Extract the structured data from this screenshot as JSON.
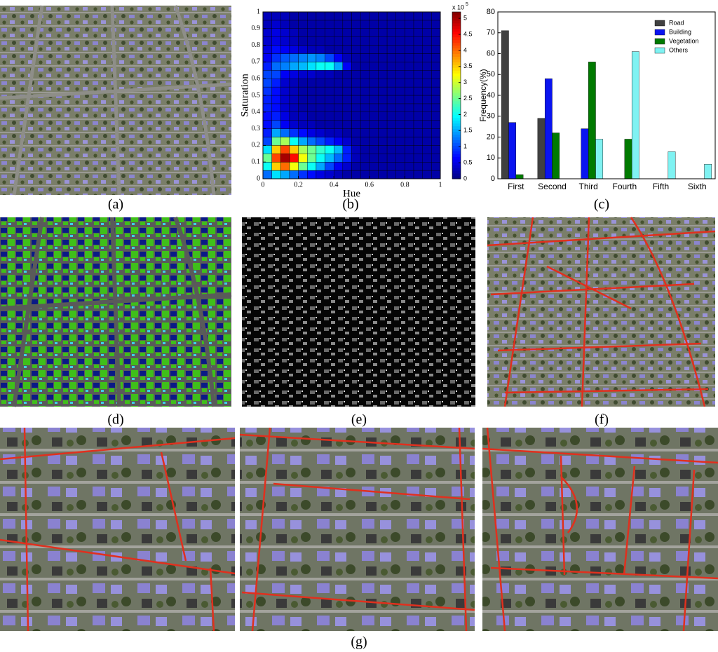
{
  "panels": {
    "captions": [
      "(a)",
      "(b)",
      "(c)",
      "(d)",
      "(e)",
      "(f)",
      "(g)"
    ]
  },
  "chart_data": [
    {
      "type": "heatmap",
      "xlabel": "Hue",
      "ylabel": "Saturation",
      "xlim": [
        0,
        1
      ],
      "ylim": [
        0,
        1
      ],
      "xticks": [
        0,
        0.2,
        0.4,
        0.6,
        0.8,
        1
      ],
      "yticks": [
        0,
        0.1,
        0.2,
        0.3,
        0.4,
        0.5,
        0.6,
        0.7,
        0.8,
        0.9,
        1
      ],
      "clim": [
        0,
        5.2
      ],
      "cticks": [
        0,
        0.5,
        1,
        1.5,
        2,
        2.5,
        3,
        3.5,
        4,
        4.5,
        5
      ],
      "colorbar_scale": {
        "base": "x 10",
        "exponent": "5"
      },
      "values": [
        [
          1.2,
          1.8,
          1.5,
          1.2,
          0.9,
          0.7,
          0.5,
          0.4,
          0.3,
          0.2,
          0.2,
          0.2,
          0.2,
          0.2,
          0.2,
          0.2,
          0.2,
          0.2,
          0.2,
          0.2
        ],
        [
          2.0,
          3.5,
          4.0,
          3.2,
          2.5,
          2.0,
          1.5,
          1.0,
          0.6,
          0.4,
          0.2,
          0.2,
          0.2,
          0.2,
          0.2,
          0.2,
          0.2,
          0.2,
          0.2,
          0.2
        ],
        [
          2.5,
          4.2,
          5.0,
          4.5,
          3.2,
          2.5,
          2.0,
          1.6,
          1.2,
          0.8,
          0.3,
          0.2,
          0.2,
          0.2,
          0.2,
          0.2,
          0.2,
          0.2,
          0.2,
          0.2
        ],
        [
          1.8,
          3.5,
          4.2,
          3.5,
          2.8,
          2.5,
          2.2,
          2.0,
          1.6,
          0.8,
          0.3,
          0.2,
          0.2,
          0.2,
          0.2,
          0.2,
          0.2,
          0.2,
          0.2,
          0.2
        ],
        [
          1.0,
          2.5,
          2.8,
          2.0,
          1.5,
          1.2,
          1.0,
          0.8,
          0.6,
          0.4,
          0.2,
          0.2,
          0.2,
          0.2,
          0.2,
          0.2,
          0.2,
          0.2,
          0.2,
          0.2
        ],
        [
          0.8,
          1.5,
          1.2,
          0.9,
          0.7,
          0.5,
          0.4,
          0.3,
          0.3,
          0.2,
          0.2,
          0.2,
          0.2,
          0.2,
          0.2,
          0.2,
          0.2,
          0.2,
          0.2,
          0.2
        ],
        [
          0.7,
          1.0,
          0.6,
          0.4,
          0.3,
          0.3,
          0.2,
          0.2,
          0.2,
          0.2,
          0.2,
          0.2,
          0.2,
          0.2,
          0.2,
          0.2,
          0.2,
          0.2,
          0.2,
          0.2
        ],
        [
          0.7,
          0.8,
          0.5,
          0.3,
          0.3,
          0.2,
          0.2,
          0.2,
          0.2,
          0.2,
          0.2,
          0.2,
          0.2,
          0.2,
          0.2,
          0.2,
          0.2,
          0.2,
          0.2,
          0.2
        ],
        [
          0.8,
          0.7,
          0.4,
          0.3,
          0.2,
          0.2,
          0.2,
          0.2,
          0.2,
          0.2,
          0.2,
          0.2,
          0.2,
          0.2,
          0.2,
          0.2,
          0.2,
          0.2,
          0.2,
          0.2
        ],
        [
          0.8,
          0.7,
          0.4,
          0.3,
          0.2,
          0.2,
          0.2,
          0.2,
          0.2,
          0.2,
          0.2,
          0.2,
          0.2,
          0.2,
          0.2,
          0.2,
          0.2,
          0.2,
          0.2,
          0.2
        ],
        [
          0.9,
          0.7,
          0.4,
          0.3,
          0.2,
          0.2,
          0.2,
          0.2,
          0.2,
          0.2,
          0.2,
          0.2,
          0.2,
          0.2,
          0.2,
          0.2,
          0.2,
          0.2,
          0.2,
          0.2
        ],
        [
          1.0,
          0.8,
          0.4,
          0.3,
          0.2,
          0.2,
          0.2,
          0.2,
          0.2,
          0.2,
          0.2,
          0.2,
          0.2,
          0.2,
          0.2,
          0.2,
          0.2,
          0.2,
          0.2,
          0.2
        ],
        [
          1.0,
          1.0,
          0.6,
          0.5,
          0.4,
          0.4,
          0.3,
          0.3,
          0.2,
          0.2,
          0.2,
          0.2,
          0.2,
          0.2,
          0.2,
          0.2,
          0.2,
          0.2,
          0.2,
          0.2
        ],
        [
          0.8,
          1.2,
          1.3,
          1.5,
          1.6,
          1.8,
          2.0,
          2.0,
          1.5,
          0.6,
          0.2,
          0.2,
          0.2,
          0.2,
          0.2,
          0.2,
          0.2,
          0.2,
          0.2,
          0.2
        ],
        [
          0.6,
          0.9,
          1.1,
          1.2,
          1.3,
          1.4,
          1.3,
          1.0,
          0.6,
          0.3,
          0.2,
          0.2,
          0.2,
          0.2,
          0.2,
          0.2,
          0.2,
          0.2,
          0.2,
          0.2
        ],
        [
          0.5,
          0.7,
          0.6,
          0.5,
          0.4,
          0.3,
          0.3,
          0.2,
          0.2,
          0.2,
          0.2,
          0.2,
          0.2,
          0.2,
          0.2,
          0.2,
          0.2,
          0.2,
          0.2,
          0.2
        ],
        [
          0.4,
          0.5,
          0.4,
          0.3,
          0.2,
          0.2,
          0.2,
          0.2,
          0.2,
          0.2,
          0.2,
          0.2,
          0.2,
          0.2,
          0.2,
          0.2,
          0.2,
          0.2,
          0.2,
          0.2
        ],
        [
          0.4,
          0.5,
          0.4,
          0.3,
          0.2,
          0.2,
          0.2,
          0.2,
          0.2,
          0.2,
          0.2,
          0.2,
          0.2,
          0.2,
          0.2,
          0.2,
          0.2,
          0.2,
          0.2,
          0.2
        ],
        [
          0.3,
          0.4,
          0.3,
          0.2,
          0.2,
          0.2,
          0.2,
          0.2,
          0.2,
          0.2,
          0.2,
          0.2,
          0.2,
          0.2,
          0.2,
          0.2,
          0.2,
          0.2,
          0.2,
          0.2
        ],
        [
          0.3,
          0.3,
          0.3,
          0.2,
          0.2,
          0.2,
          0.2,
          0.2,
          0.2,
          0.2,
          0.2,
          0.2,
          0.2,
          0.2,
          0.2,
          0.2,
          0.2,
          0.2,
          0.2,
          0.2
        ]
      ]
    },
    {
      "type": "bar",
      "ylabel": "Frequency(%)",
      "categories": [
        "First",
        "Second",
        "Third",
        "Fourth",
        "Fifth",
        "Sixth"
      ],
      "series": [
        {
          "name": "Road",
          "color": "#404040",
          "values": [
            71,
            29,
            null,
            null,
            null,
            null
          ]
        },
        {
          "name": "Building",
          "color": "#0a14f0",
          "values": [
            27,
            48,
            24,
            null,
            null,
            null
          ]
        },
        {
          "name": "Vegetation",
          "color": "#007a00",
          "values": [
            2,
            22,
            56,
            19,
            null,
            null
          ]
        },
        {
          "name": "Others",
          "color": "#7ff2f2",
          "values": [
            null,
            null,
            19,
            61,
            13,
            7
          ]
        }
      ],
      "ylim": [
        0,
        80
      ],
      "yticks": [
        0,
        10,
        20,
        30,
        40,
        50,
        60,
        70,
        80
      ],
      "legend": "top-right"
    }
  ]
}
